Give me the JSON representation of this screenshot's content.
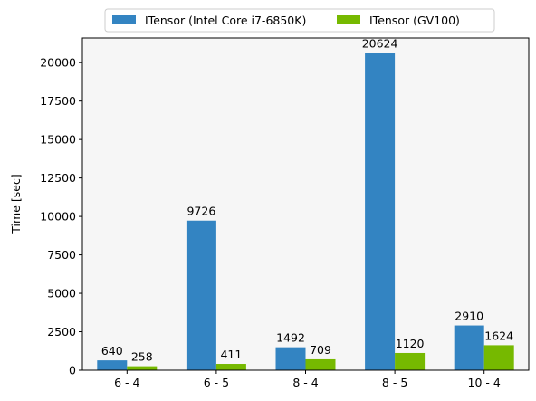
{
  "chart_data": {
    "type": "bar",
    "categories": [
      "6 - 4",
      "6 - 5",
      "8 - 4",
      "8 - 5",
      "10 - 4"
    ],
    "series": [
      {
        "name": "ITensor (Intel Core i7-6850K)",
        "values": [
          640,
          9726,
          1492,
          20624,
          2910
        ],
        "color": "#3384c2"
      },
      {
        "name": "ITensor (GV100)",
        "values": [
          258,
          411,
          709,
          1120,
          1624
        ],
        "color": "#76b900"
      }
    ],
    "title": "",
    "xlabel": "",
    "ylabel": "Time [sec]",
    "ylim": [
      0,
      21600
    ],
    "yticks": [
      0,
      2500,
      5000,
      7500,
      10000,
      12500,
      15000,
      17500,
      20000
    ],
    "grid": false,
    "legend_position": "top-center",
    "plot_background": "#f6f6f6"
  }
}
